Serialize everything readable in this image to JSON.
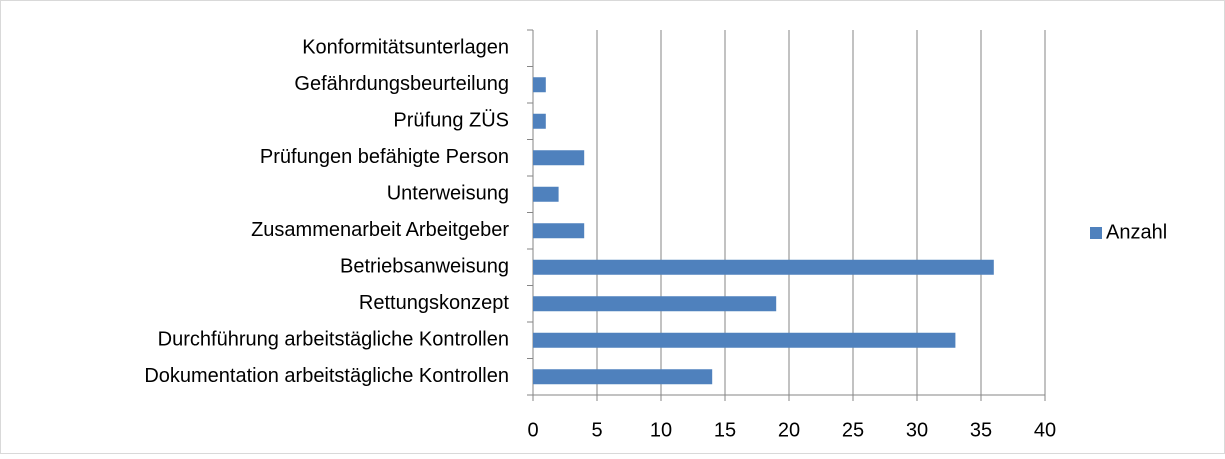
{
  "chart_data": {
    "type": "bar",
    "orientation": "horizontal",
    "categories": [
      "Konformitätsunterlagen",
      "Gefährdungsbeurteilung",
      "Prüfung ZÜS",
      "Prüfungen befähigte Person",
      "Unterweisung",
      "Zusammenarbeit Arbeitgeber",
      "Betriebsanweisung",
      "Rettungskonzept",
      "Durchführung arbeitstägliche Kontrollen",
      "Dokumentation arbeitstägliche Kontrollen"
    ],
    "series": [
      {
        "name": "Anzahl",
        "color": "#4f81bd",
        "values": [
          0,
          1,
          1,
          4,
          2,
          4,
          36,
          19,
          33,
          14
        ]
      }
    ],
    "xlim": [
      0,
      40
    ],
    "xticks": [
      0,
      5,
      10,
      15,
      20,
      25,
      30,
      35,
      40
    ],
    "grid": true,
    "legend": "right"
  }
}
